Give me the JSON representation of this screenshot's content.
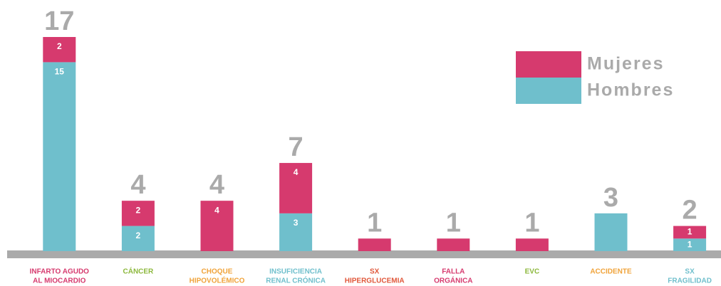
{
  "chart_data": {
    "type": "stacked_bar",
    "categories": [
      [
        "INFARTO AGUDO",
        "AL MIOCARDIO"
      ],
      [
        "CÁNCER"
      ],
      [
        "CHOQUE",
        "HIPOVOLÉMICO"
      ],
      [
        "INSUFICIENCIA",
        "RENAL CRÓNICA"
      ],
      [
        "SX",
        "HIPERGLUCEMIA"
      ],
      [
        "FALLA",
        "ORGÁNICA"
      ],
      [
        "EVC"
      ],
      [
        "ACCIDENTE"
      ],
      [
        "SX",
        "FRAGILIDAD"
      ]
    ],
    "category_colors": [
      "#d63a6e",
      "#8cb83c",
      "#f0a33a",
      "#6fbfcc",
      "#e0573a",
      "#d63a6e",
      "#8cb83c",
      "#f0a33a",
      "#6fbfcc"
    ],
    "series": [
      {
        "name": "Hombres",
        "color": "#6fbfcc",
        "values": [
          15,
          2,
          0,
          3,
          0,
          0,
          0,
          3,
          1
        ],
        "value_labels": [
          "15",
          "2",
          null,
          "3",
          null,
          null,
          null,
          null,
          "1"
        ]
      },
      {
        "name": "Mujeres",
        "color": "#d63a6e",
        "values": [
          2,
          2,
          4,
          4,
          1,
          1,
          1,
          0,
          1
        ],
        "value_labels": [
          "2",
          "2",
          "4",
          "4",
          null,
          null,
          null,
          null,
          "1"
        ]
      }
    ],
    "totals": [
      17,
      4,
      4,
      7,
      1,
      1,
      1,
      3,
      2
    ],
    "ylim": [
      0,
      17
    ]
  }
}
